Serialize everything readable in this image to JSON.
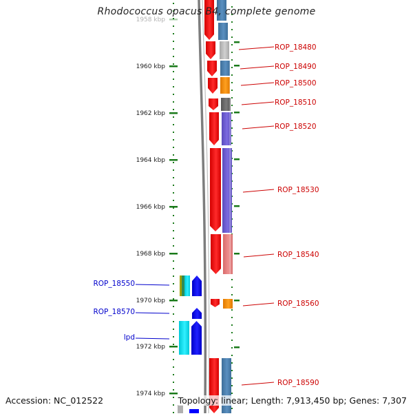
{
  "title": "Rhodococcus opacus B4, complete genome",
  "footer": {
    "accession": "Accession: NC_012522",
    "summary": "Topology: linear; Length: 7,913,450 bp; Genes: 7,307"
  },
  "colors": {
    "ruler": "#1a7a1a",
    "backbone": "#7d7d7d",
    "gene_arrow_fwd": "#ff0000",
    "gene_arrow_rev": "#0000ff",
    "label_red": "#cc0000",
    "label_blue": "#0000cc"
  },
  "ruler": {
    "ticks": [
      {
        "label": "1958 kbp",
        "faded": true
      },
      {
        "label": "1960 kbp"
      },
      {
        "label": "1962 kbp"
      },
      {
        "label": "1964 kbp"
      },
      {
        "label": "1966 kbp"
      },
      {
        "label": "1968 kbp"
      },
      {
        "label": "1970 kbp"
      },
      {
        "label": "1972 kbp"
      },
      {
        "label": "1974 kbp"
      }
    ]
  },
  "right_genes": [
    {
      "label": "ROP_18480",
      "color": "#c0c0c0"
    },
    {
      "label": "ROP_18490",
      "color": "#4682b4"
    },
    {
      "label": "ROP_18500",
      "color": "#ff8c00"
    },
    {
      "label": "ROP_18510",
      "color": "#696969"
    },
    {
      "label": "ROP_18520",
      "color": "#6a5acd"
    },
    {
      "label": "ROP_18530",
      "color": "#6a5acd"
    },
    {
      "label": "ROP_18540",
      "color": "#e07b7b"
    },
    {
      "label": "ROP_18560",
      "color": "#ff8c00"
    },
    {
      "label": "ROP_18590",
      "color": "#4682b4"
    }
  ],
  "left_genes": [
    {
      "label": "ROP_18550"
    },
    {
      "label": "ROP_18570"
    },
    {
      "label": "lpd"
    }
  ]
}
